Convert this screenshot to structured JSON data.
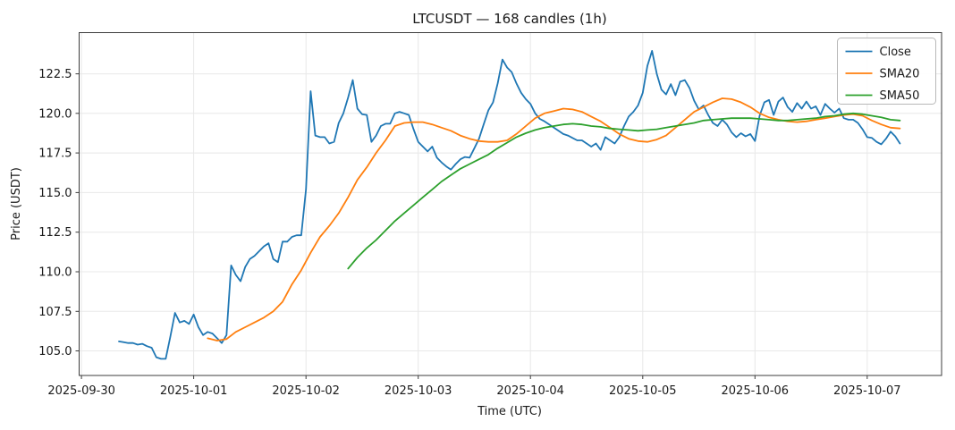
{
  "chart_data": {
    "type": "line",
    "title": "LTCUSDT — 168 candles (1h)",
    "xlabel": "Time (UTC)",
    "ylabel": "Price (USDT)",
    "grid": true,
    "legend_position": "upper right",
    "time_origin": "2025-09-30 00:00 UTC",
    "x_tick_hours": [
      0,
      24,
      48,
      72,
      96,
      120,
      144,
      168
    ],
    "x_tick_labels": [
      "2025-09-30",
      "2025-10-01",
      "2025-10-02",
      "2025-10-03",
      "2025-10-04",
      "2025-10-05",
      "2025-10-06",
      "2025-10-07"
    ],
    "y_ticks": [
      105.0,
      107.5,
      110.0,
      112.5,
      115.0,
      117.5,
      120.0,
      122.5
    ],
    "y_tick_labels": [
      "105.0",
      "107.5",
      "110.0",
      "112.5",
      "115.0",
      "117.5",
      "120.0",
      "122.5"
    ],
    "xlim_hours": [
      -0.5,
      183.9
    ],
    "ylim": [
      103.45,
      125.1
    ],
    "colors": {
      "close": "#1f77b4",
      "sma20": "#ff7f0e",
      "sma50": "#2ca02c",
      "grid": "#e8e8e8",
      "spine": "#3c3c3c",
      "text": "#1a1a1a",
      "legend_border": "#b8b8b8",
      "background": "#ffffff"
    },
    "series": [
      {
        "name": "Close",
        "color": "#1f77b4",
        "start_hour": 8,
        "interval_hours": 1,
        "values": [
          105.6,
          105.55,
          105.5,
          105.5,
          105.4,
          105.45,
          105.3,
          105.2,
          104.6,
          104.5,
          104.5,
          105.9,
          107.4,
          106.8,
          106.9,
          106.7,
          107.3,
          106.5,
          106.0,
          106.2,
          106.1,
          105.8,
          105.5,
          106.0,
          110.4,
          109.8,
          109.4,
          110.3,
          110.8,
          111.0,
          111.3,
          111.6,
          111.8,
          110.8,
          110.6,
          111.9,
          111.9,
          112.2,
          112.3,
          112.3,
          115.2,
          121.4,
          118.6,
          118.5,
          118.5,
          118.1,
          118.2,
          119.4,
          120.0,
          121.0,
          122.1,
          120.3,
          119.95,
          119.9,
          118.2,
          118.6,
          119.2,
          119.35,
          119.35,
          120.0,
          120.1,
          120.0,
          119.9,
          119.0,
          118.2,
          117.9,
          117.6,
          117.9,
          117.2,
          116.9,
          116.65,
          116.45,
          116.8,
          117.1,
          117.25,
          117.2,
          117.8,
          118.4,
          119.3,
          120.2,
          120.7,
          121.9,
          123.4,
          122.9,
          122.6,
          121.9,
          121.3,
          120.9,
          120.6,
          120.0,
          119.65,
          119.5,
          119.3,
          119.1,
          118.9,
          118.7,
          118.6,
          118.45,
          118.3,
          118.3,
          118.1,
          117.9,
          118.1,
          117.7,
          118.5,
          118.3,
          118.1,
          118.5,
          119.2,
          119.8,
          120.1,
          120.5,
          121.3,
          123.0,
          123.95,
          122.5,
          121.5,
          121.2,
          121.85,
          121.15,
          122.0,
          122.1,
          121.6,
          120.8,
          120.25,
          120.5,
          119.9,
          119.4,
          119.2,
          119.6,
          119.3,
          118.8,
          118.5,
          118.75,
          118.55,
          118.7,
          118.25,
          119.85,
          120.7,
          120.85,
          119.9,
          120.75,
          121.0,
          120.4,
          120.1,
          120.65,
          120.3,
          120.75,
          120.3,
          120.45,
          119.9,
          120.6,
          120.3,
          120.05,
          120.3,
          119.7,
          119.6,
          119.6,
          119.4,
          119.0,
          118.5,
          118.45,
          118.2,
          118.05,
          118.4,
          118.85,
          118.55,
          118.1
        ]
      },
      {
        "name": "SMA20",
        "color": "#ff7f0e",
        "points": [
          [
            27,
            105.8
          ],
          [
            29,
            105.65
          ],
          [
            31,
            105.75
          ],
          [
            33,
            106.2
          ],
          [
            35,
            106.5
          ],
          [
            37,
            106.8
          ],
          [
            39,
            107.1
          ],
          [
            41,
            107.5
          ],
          [
            43,
            108.1
          ],
          [
            45,
            109.2
          ],
          [
            47,
            110.1
          ],
          [
            49,
            111.2
          ],
          [
            51,
            112.2
          ],
          [
            53,
            112.9
          ],
          [
            55,
            113.7
          ],
          [
            57,
            114.7
          ],
          [
            59,
            115.8
          ],
          [
            61,
            116.6
          ],
          [
            63,
            117.5
          ],
          [
            65,
            118.3
          ],
          [
            67,
            119.2
          ],
          [
            69,
            119.4
          ],
          [
            71,
            119.45
          ],
          [
            73,
            119.45
          ],
          [
            75,
            119.3
          ],
          [
            77,
            119.1
          ],
          [
            79,
            118.9
          ],
          [
            81,
            118.6
          ],
          [
            83,
            118.4
          ],
          [
            85,
            118.25
          ],
          [
            87,
            118.2
          ],
          [
            89,
            118.2
          ],
          [
            91,
            118.3
          ],
          [
            93,
            118.7
          ],
          [
            95,
            119.2
          ],
          [
            97,
            119.7
          ],
          [
            99,
            120.0
          ],
          [
            101,
            120.15
          ],
          [
            103,
            120.3
          ],
          [
            105,
            120.25
          ],
          [
            107,
            120.1
          ],
          [
            109,
            119.8
          ],
          [
            111,
            119.5
          ],
          [
            113,
            119.1
          ],
          [
            115,
            118.7
          ],
          [
            117,
            118.4
          ],
          [
            119,
            118.25
          ],
          [
            121,
            118.2
          ],
          [
            123,
            118.35
          ],
          [
            125,
            118.6
          ],
          [
            127,
            119.1
          ],
          [
            129,
            119.6
          ],
          [
            131,
            120.1
          ],
          [
            133,
            120.4
          ],
          [
            135,
            120.7
          ],
          [
            137,
            120.95
          ],
          [
            139,
            120.9
          ],
          [
            141,
            120.7
          ],
          [
            143,
            120.4
          ],
          [
            145,
            120.0
          ],
          [
            147,
            119.75
          ],
          [
            149,
            119.6
          ],
          [
            151,
            119.5
          ],
          [
            153,
            119.45
          ],
          [
            155,
            119.5
          ],
          [
            157,
            119.6
          ],
          [
            159,
            119.7
          ],
          [
            161,
            119.8
          ],
          [
            163,
            119.9
          ],
          [
            165,
            119.95
          ],
          [
            167,
            119.85
          ],
          [
            169,
            119.55
          ],
          [
            171,
            119.3
          ],
          [
            173,
            119.1
          ],
          [
            175,
            119.05
          ]
        ]
      },
      {
        "name": "SMA50",
        "color": "#2ca02c",
        "points": [
          [
            57,
            110.2
          ],
          [
            59,
            110.9
          ],
          [
            61,
            111.5
          ],
          [
            63,
            112.0
          ],
          [
            65,
            112.6
          ],
          [
            67,
            113.2
          ],
          [
            69,
            113.7
          ],
          [
            71,
            114.2
          ],
          [
            73,
            114.7
          ],
          [
            75,
            115.2
          ],
          [
            77,
            115.7
          ],
          [
            79,
            116.1
          ],
          [
            81,
            116.5
          ],
          [
            83,
            116.8
          ],
          [
            85,
            117.1
          ],
          [
            87,
            117.4
          ],
          [
            89,
            117.8
          ],
          [
            91,
            118.15
          ],
          [
            93,
            118.5
          ],
          [
            95,
            118.75
          ],
          [
            97,
            118.95
          ],
          [
            99,
            119.1
          ],
          [
            101,
            119.2
          ],
          [
            103,
            119.3
          ],
          [
            105,
            119.35
          ],
          [
            107,
            119.3
          ],
          [
            109,
            119.2
          ],
          [
            111,
            119.15
          ],
          [
            113,
            119.05
          ],
          [
            115,
            119.0
          ],
          [
            117,
            118.95
          ],
          [
            119,
            118.9
          ],
          [
            121,
            118.95
          ],
          [
            123,
            119.0
          ],
          [
            125,
            119.1
          ],
          [
            127,
            119.2
          ],
          [
            129,
            119.3
          ],
          [
            131,
            119.4
          ],
          [
            133,
            119.55
          ],
          [
            135,
            119.6
          ],
          [
            137,
            119.65
          ],
          [
            139,
            119.7
          ],
          [
            141,
            119.7
          ],
          [
            143,
            119.7
          ],
          [
            145,
            119.65
          ],
          [
            147,
            119.6
          ],
          [
            149,
            119.55
          ],
          [
            151,
            119.55
          ],
          [
            153,
            119.6
          ],
          [
            155,
            119.65
          ],
          [
            157,
            119.7
          ],
          [
            159,
            119.8
          ],
          [
            161,
            119.85
          ],
          [
            163,
            119.95
          ],
          [
            165,
            120.0
          ],
          [
            167,
            119.95
          ],
          [
            169,
            119.85
          ],
          [
            171,
            119.75
          ],
          [
            173,
            119.6
          ],
          [
            175,
            119.55
          ]
        ]
      }
    ]
  }
}
